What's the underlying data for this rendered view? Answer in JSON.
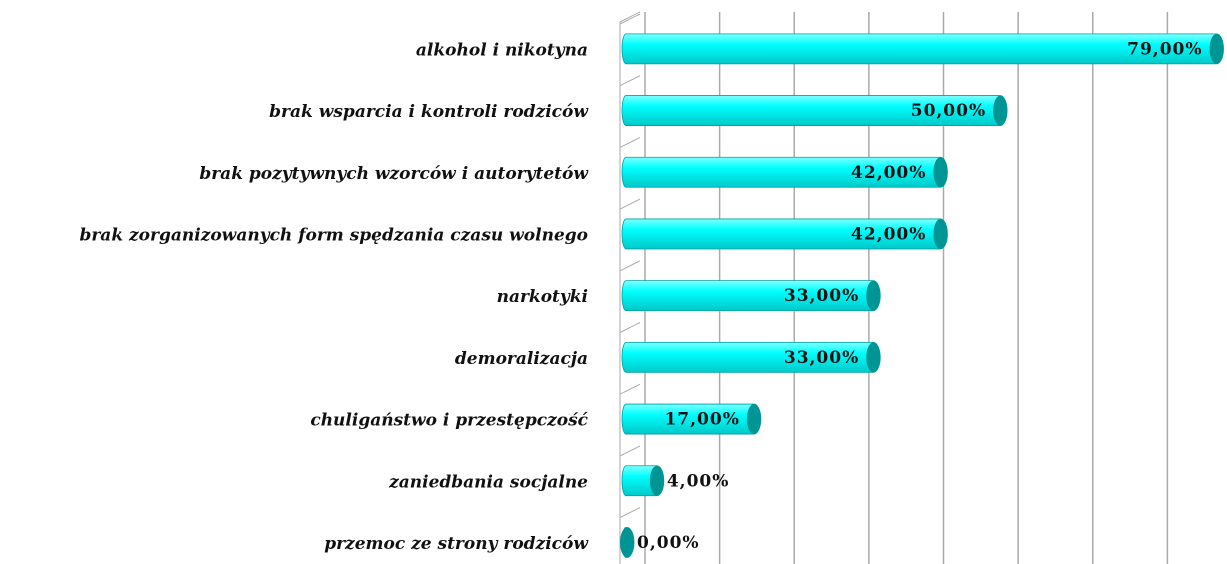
{
  "chart_data": {
    "type": "bar",
    "orientation": "horizontal",
    "categories": [
      "alkohol i nikotyna",
      "brak wsparcia i kontroli rodziców",
      "brak pozytywnych wzorców i autorytetów",
      "brak zorganizowanych form spędzania czasu wolnego",
      "narkotyki",
      "demoralizacja",
      "chuligaństwo i przestępczość",
      "zaniedbania socjalne",
      "przemoc ze strony rodziców"
    ],
    "values": [
      79,
      50,
      42,
      42,
      33,
      33,
      17,
      4,
      0
    ],
    "value_labels": [
      "79,00%",
      "50,00%",
      "42,00%",
      "42,00%",
      "33,00%",
      "33,00%",
      "17,00%",
      "4,00%",
      "0,00%"
    ],
    "color": "#00ffff",
    "xlim": [
      0,
      80
    ],
    "xticks": [
      0,
      10,
      20,
      30,
      40,
      50,
      60,
      70,
      80
    ],
    "grid": true
  }
}
